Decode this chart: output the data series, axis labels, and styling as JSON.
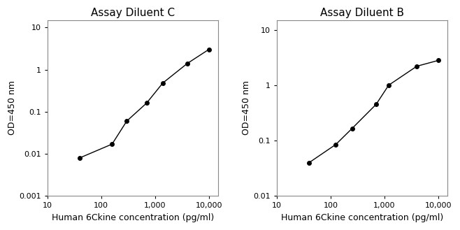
{
  "left": {
    "title": "Assay Diluent C",
    "x": [
      40,
      160,
      300,
      700,
      1400,
      4000,
      10000
    ],
    "y": [
      0.008,
      0.017,
      0.06,
      0.16,
      0.48,
      1.4,
      3.0
    ],
    "xlim": [
      10,
      15000
    ],
    "ylim": [
      0.001,
      15
    ],
    "ylabel": "OD=450 nm",
    "xlabel": "Human 6Ckine concentration (pg/ml)",
    "yticks": [
      0.001,
      0.01,
      0.1,
      1,
      10
    ],
    "ytick_labels": [
      "0.001",
      "0.01",
      "0.1",
      "1",
      "10"
    ],
    "xticks": [
      10,
      100,
      1000,
      10000
    ],
    "xtick_labels": [
      "10",
      "100",
      "1,000",
      "10,000"
    ]
  },
  "right": {
    "title": "Assay Diluent B",
    "x": [
      40,
      125,
      250,
      700,
      1200,
      4000,
      10000
    ],
    "y": [
      0.04,
      0.085,
      0.165,
      0.45,
      1.0,
      2.2,
      2.8
    ],
    "xlim": [
      10,
      15000
    ],
    "ylim": [
      0.01,
      15
    ],
    "ylabel": "OD=450 nm",
    "xlabel": "Human 6Ckine concentration (pg/ml)",
    "yticks": [
      0.01,
      0.1,
      1,
      10
    ],
    "ytick_labels": [
      "0.01",
      "0.1",
      "1",
      "10"
    ],
    "xticks": [
      10,
      100,
      1000,
      10000
    ],
    "xtick_labels": [
      "10",
      "100",
      "1,000",
      "10,000"
    ]
  },
  "line_color": "#000000",
  "marker_color": "#000000",
  "marker_size": 4,
  "line_width": 1.0,
  "title_fontsize": 11,
  "label_fontsize": 9,
  "tick_fontsize": 8,
  "text_color": "#000000"
}
